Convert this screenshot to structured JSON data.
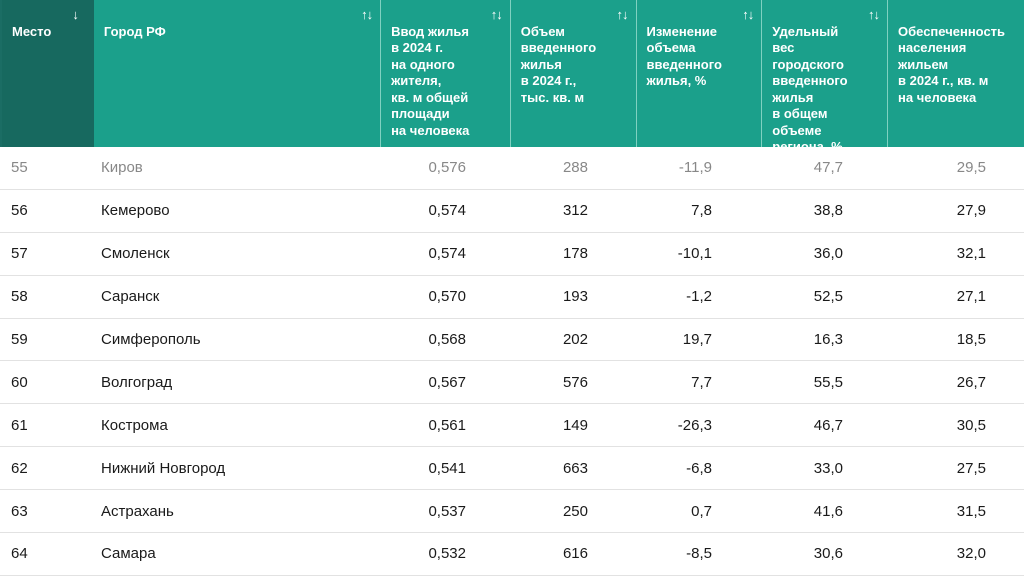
{
  "colors": {
    "header_bg": "#1ba08b",
    "header_active_bg": "#17695f",
    "text": "#1a1a1a",
    "dim_text": "#888888"
  },
  "columns": [
    {
      "label": "Место",
      "icon": "↓",
      "icon_name": "sort-desc-icon"
    },
    {
      "label": "Город РФ",
      "icon": "↑↓",
      "icon_name": "sort-icon"
    },
    {
      "label": "Ввод жилья\nв 2024 г.\nна одного\nжителя,\nкв. м общей\nплощади\nна человека",
      "icon": "↑↓",
      "icon_name": "sort-icon"
    },
    {
      "label": "Объем\nвведенного\nжилья\nв 2024 г.,\nтыс. кв. м",
      "icon": "↑↓",
      "icon_name": "sort-icon"
    },
    {
      "label": "Изменение\nобъема\nвведенного\nжилья, %",
      "icon": "↑↓",
      "icon_name": "sort-icon"
    },
    {
      "label": "Удельный\nвес\nгородского\nвведенного\nжилья\nв общем\nобъеме\nрегиона, %",
      "icon": "↑↓",
      "icon_name": "sort-icon"
    },
    {
      "label": "Обеспеченность\nнаселения\nжильем\nв 2024 г., кв. м\nна человека",
      "icon": "",
      "icon_name": ""
    }
  ],
  "rows": [
    [
      "55",
      "Киров",
      "0,576",
      "288",
      "-11,9",
      "47,7",
      "29,5"
    ],
    [
      "56",
      "Кемерово",
      "0,574",
      "312",
      "7,8",
      "38,8",
      "27,9"
    ],
    [
      "57",
      "Смоленск",
      "0,574",
      "178",
      "-10,1",
      "36,0",
      "32,1"
    ],
    [
      "58",
      "Саранск",
      "0,570",
      "193",
      "-1,2",
      "52,5",
      "27,1"
    ],
    [
      "59",
      "Симферополь",
      "0,568",
      "202",
      "19,7",
      "16,3",
      "18,5"
    ],
    [
      "60",
      "Волгоград",
      "0,567",
      "576",
      "7,7",
      "55,5",
      "26,7"
    ],
    [
      "61",
      "Кострома",
      "0,561",
      "149",
      "-26,3",
      "46,7",
      "30,5"
    ],
    [
      "62",
      "Нижний Новгород",
      "0,541",
      "663",
      "-6,8",
      "33,0",
      "27,5"
    ],
    [
      "63",
      "Астрахань",
      "0,537",
      "250",
      "0,7",
      "41,6",
      "31,5"
    ],
    [
      "64",
      "Самара",
      "0,532",
      "616",
      "-8,5",
      "30,6",
      "32,0"
    ]
  ]
}
